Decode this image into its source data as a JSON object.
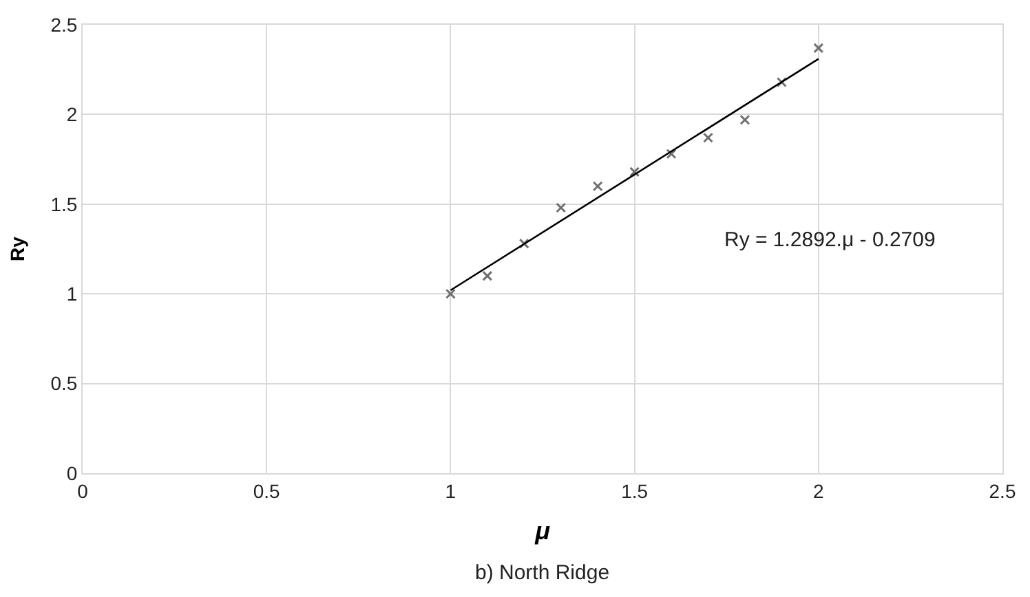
{
  "chart_data": {
    "type": "scatter",
    "xlabel": "μ",
    "ylabel": "Ry",
    "xlim": [
      0,
      2.5
    ],
    "ylim": [
      0,
      2.5
    ],
    "xticks": [
      0,
      0.5,
      1,
      1.5,
      2,
      2.5
    ],
    "yticks": [
      0,
      0.5,
      1,
      1.5,
      2,
      2.5
    ],
    "grid": true,
    "series": [
      {
        "color": "#707070",
        "marker": "cross",
        "x": [
          1,
          1.1,
          1.2,
          1.3,
          1.4,
          1.5,
          1.6,
          1.7,
          1.8,
          1.9,
          2
        ],
        "values": [
          1.0,
          1.1,
          1.28,
          1.48,
          1.6,
          1.68,
          1.78,
          1.87,
          1.97,
          2.18,
          2.37
        ]
      },
      {
        "type": "line",
        "color": "#000000",
        "x": [
          1,
          2
        ],
        "values": [
          1.02,
          2.31
        ]
      }
    ],
    "annotations": [
      "Ry = 1.2892.μ - 0.2709",
      "b) North Ridge"
    ]
  }
}
